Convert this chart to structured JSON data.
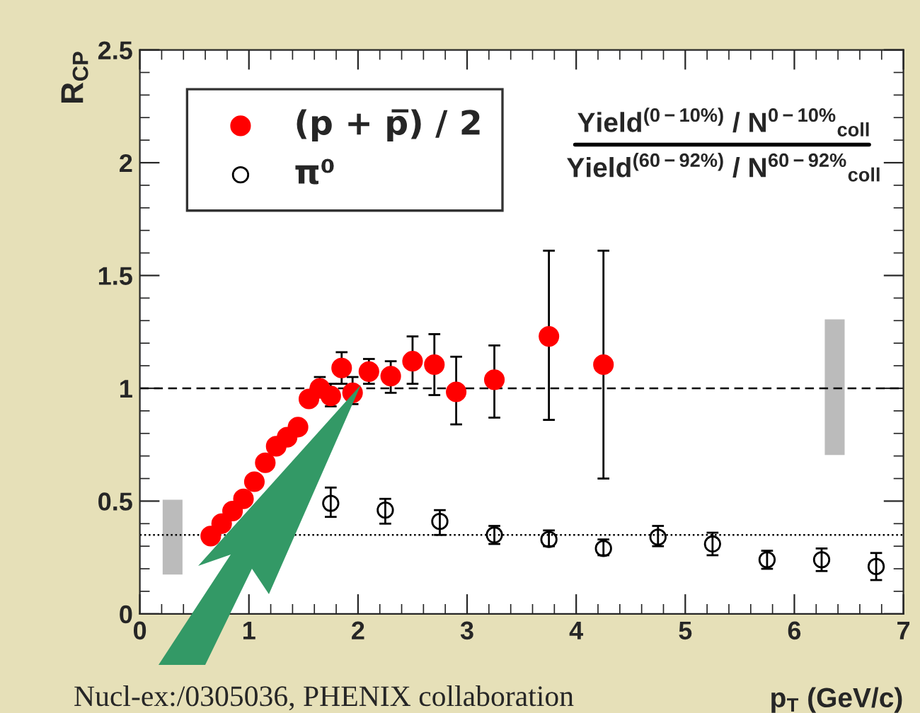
{
  "chart_data": {
    "type": "scatter",
    "xlabel": "p$_{T}$ (GeV/c)",
    "ylabel": "R$_{CP}$",
    "xlim": [
      0,
      7
    ],
    "xticks": [
      0,
      1,
      2,
      3,
      4,
      5,
      6,
      7
    ],
    "ylim": [
      0,
      2.5
    ],
    "yticks": [
      0,
      0.5,
      1,
      1.5,
      2,
      2.5
    ],
    "legend": "top left",
    "marker": "circle",
    "series": [
      {
        "name": "(p + p̅) / 2",
        "color": "#ff0000",
        "x": [
          0.65,
          0.75,
          0.85,
          0.95,
          1.05,
          1.15,
          1.25,
          1.35,
          1.45,
          1.55,
          1.65,
          1.75,
          1.85,
          1.95,
          2.1,
          2.3,
          2.5,
          2.7,
          2.9,
          3.25,
          3.75,
          4.25
        ],
        "values": [
          0.345,
          0.4,
          0.456,
          0.51,
          0.586,
          0.67,
          0.743,
          0.783,
          0.828,
          0.953,
          1.0,
          0.966,
          1.09,
          0.98,
          1.074,
          1.054,
          1.12,
          1.105,
          0.984,
          1.038,
          1.23,
          1.105
        ],
        "errors": [
          null,
          null,
          null,
          null,
          null,
          null,
          null,
          null,
          null,
          null,
          [
            0.96,
            1.05
          ],
          [
            0.92,
            1.02
          ],
          [
            1.02,
            1.16
          ],
          [
            0.93,
            1.05
          ],
          [
            1.02,
            1.13
          ],
          [
            0.98,
            1.12
          ],
          [
            1.02,
            1.23
          ],
          [
            0.97,
            1.24
          ],
          [
            0.84,
            1.14
          ],
          [
            0.87,
            1.19
          ],
          [
            0.86,
            1.61
          ],
          [
            0.6,
            1.61
          ]
        ]
      },
      {
        "name": "π⁰",
        "color": "#000000",
        "x": [
          1.75,
          2.25,
          2.75,
          3.25,
          3.75,
          4.25,
          4.75,
          5.25,
          5.75,
          6.25,
          6.75
        ],
        "values": [
          0.49,
          0.46,
          0.41,
          0.35,
          0.33,
          0.29,
          0.34,
          0.31,
          0.24,
          0.24,
          0.21
        ],
        "errors": [
          [
            0.43,
            0.56
          ],
          [
            0.4,
            0.51
          ],
          [
            0.35,
            0.46
          ],
          [
            0.31,
            0.39
          ],
          [
            0.3,
            0.37
          ],
          [
            0.26,
            0.33
          ],
          [
            0.3,
            0.39
          ],
          [
            0.26,
            0.36
          ],
          [
            0.2,
            0.28
          ],
          [
            0.19,
            0.29
          ],
          [
            0.15,
            0.27
          ]
        ]
      },
      {
        "type": "bar",
        "color": "#bbbbbb",
        "x": [
          0.3,
          6.37
        ],
        "base": [
          0.17,
          0.7
        ],
        "values": [
          0.34,
          0.61
        ]
      }
    ],
    "ref_lines": [
      {
        "axis": "y",
        "value": 1,
        "line_style": "dashed"
      },
      {
        "axis": "y",
        "value": 0.35,
        "line_style": "dotted"
      }
    ],
    "annotations": [
      "Yield$^{(0−10%)}$ / N$^{0−10%}$$_{coll}$",
      "Yield$^{(60−92%)}$ / N$^{60−92%}$$_{coll}$",
      "Nucl-ex:/0305036, PHENIX collaboration"
    ]
  }
}
